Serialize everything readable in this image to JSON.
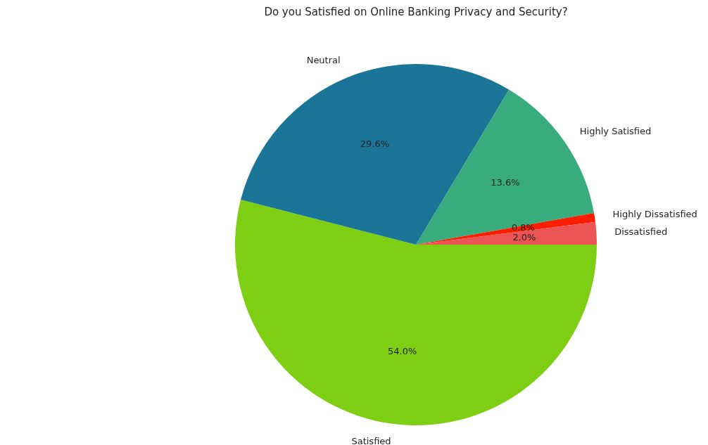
{
  "chart_data": {
    "type": "pie",
    "title": "Do you Satisfied on Online Banking Privacy and Security?",
    "categories": [
      "Dissatisfied",
      "Highly Dissatisfied",
      "Highly Satisfied",
      "Neutral",
      "Satisfied"
    ],
    "values": [
      2.0,
      0.8,
      13.6,
      29.6,
      54.0
    ],
    "colors": [
      "#ea5455",
      "#fc1e00",
      "#38ac7c",
      "#1a7598",
      "#7ecf14"
    ],
    "value_labels": [
      "2.0%",
      "0.8%",
      "13.6%",
      "29.6%",
      "54.0%"
    ]
  }
}
